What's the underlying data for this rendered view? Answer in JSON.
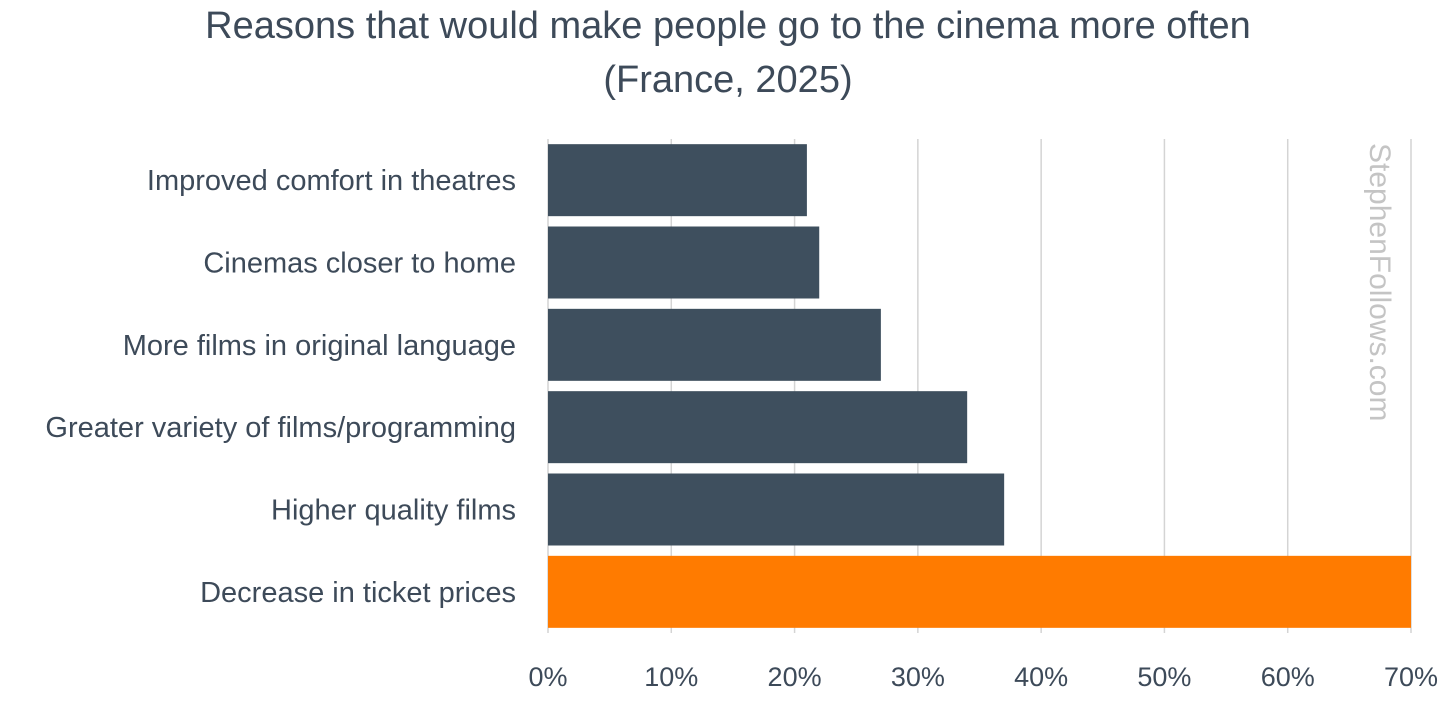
{
  "title": {
    "line1": "Reasons that would make people go to the cinema more often",
    "line2": "(France, 2025)"
  },
  "watermark": "StephenFollows.com",
  "chart_data": {
    "type": "bar",
    "orientation": "horizontal",
    "title": "Reasons that would make people go to the cinema more often (France, 2025)",
    "categories": [
      "Improved comfort in theatres",
      "Cinemas closer to home",
      "More films in original language",
      "Greater variety of films/programming",
      "Higher quality films",
      "Decrease in ticket prices"
    ],
    "values": [
      21,
      22,
      27,
      34,
      37,
      70
    ],
    "xlim": [
      0,
      70
    ],
    "x_ticks": [
      0,
      10,
      20,
      30,
      40,
      50,
      60,
      70
    ],
    "x_tick_labels": [
      "0%",
      "10%",
      "20%",
      "30%",
      "40%",
      "50%",
      "60%",
      "70%"
    ],
    "grid": true,
    "legend": "none",
    "colors": {
      "default": "#3e4f5e",
      "highlight": "#ff7b00",
      "highlight_index": 5,
      "grid": "#d4d4d4",
      "text": "#3d4a59"
    }
  }
}
